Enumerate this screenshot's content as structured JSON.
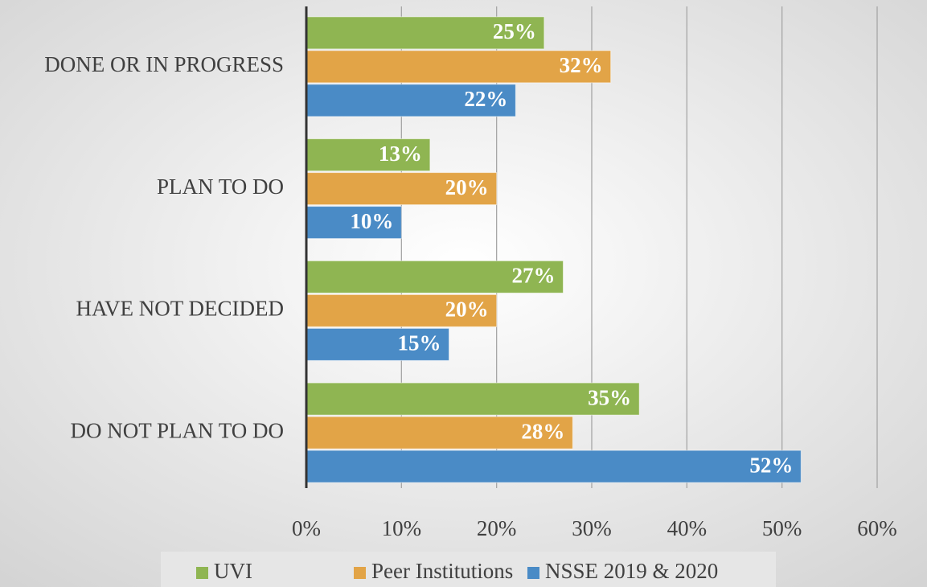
{
  "chart_data": {
    "type": "bar",
    "orientation": "horizontal",
    "categories": [
      "DONE OR IN PROGRESS",
      "PLAN TO DO",
      "HAVE NOT DECIDED",
      "DO NOT PLAN TO DO"
    ],
    "series": [
      {
        "name": "UVI",
        "color": "#8fb552",
        "values": [
          25,
          13,
          27,
          35
        ],
        "value_labels": [
          "25%",
          "13%",
          "27%",
          "35%"
        ]
      },
      {
        "name": "Peer Institutions",
        "color": "#e2a447",
        "values": [
          32,
          20,
          20,
          28
        ],
        "value_labels": [
          "32%",
          "20%",
          "20%",
          "28%"
        ]
      },
      {
        "name": "NSSE 2019 & 2020",
        "color": "#4a8bc6",
        "values": [
          22,
          10,
          15,
          52
        ],
        "value_labels": [
          "22%",
          "10%",
          "15%",
          "52%"
        ]
      }
    ],
    "xlim": [
      0,
      60
    ],
    "xticks": [
      {
        "value": 0,
        "label": "0%"
      },
      {
        "value": 10,
        "label": "10%"
      },
      {
        "value": 20,
        "label": "20%"
      },
      {
        "value": 30,
        "label": "30%"
      },
      {
        "value": 40,
        "label": "40%"
      },
      {
        "value": 50,
        "label": "50%"
      },
      {
        "value": 60,
        "label": "60%"
      }
    ],
    "grid": true,
    "legend": "bottom"
  }
}
